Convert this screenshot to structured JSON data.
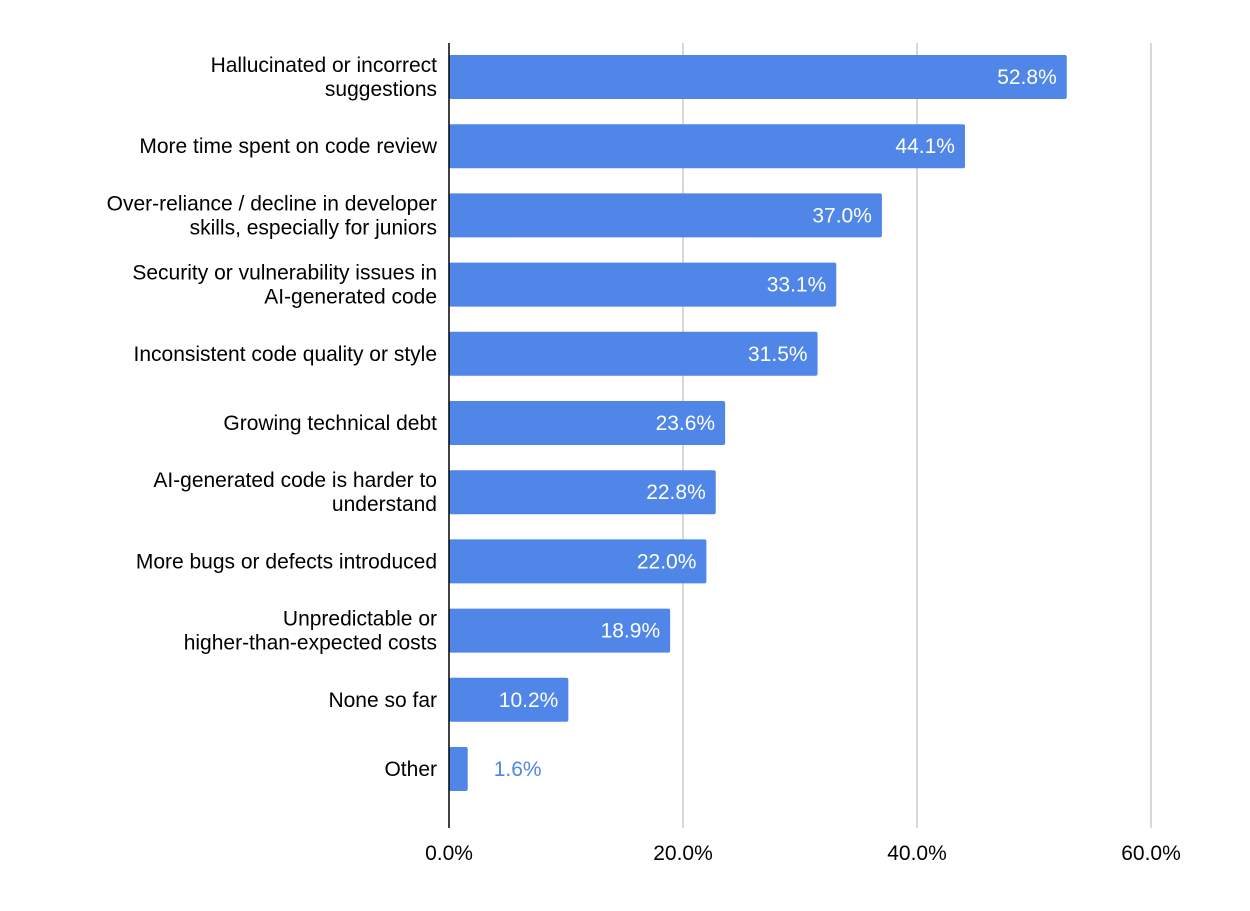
{
  "chart_data": {
    "type": "bar",
    "orientation": "horizontal",
    "categories": [
      [
        "Hallucinated or incorrect",
        "suggestions"
      ],
      [
        "More time spent on code review"
      ],
      [
        "Over-reliance / decline in developer",
        "skills, especially for juniors"
      ],
      [
        "Security or vulnerability issues in",
        "AI-generated code"
      ],
      [
        "Inconsistent code quality or style"
      ],
      [
        "Growing technical debt"
      ],
      [
        "AI-generated code is harder to",
        "understand"
      ],
      [
        "More bugs or defects introduced"
      ],
      [
        "Unpredictable or",
        "higher-than-expected costs"
      ],
      [
        "None so far"
      ],
      [
        "Other"
      ]
    ],
    "values": [
      52.8,
      44.1,
      37.0,
      33.1,
      31.5,
      23.6,
      22.8,
      22.0,
      18.9,
      10.2,
      1.6
    ],
    "data_labels": [
      "52.8%",
      "44.1%",
      "37.0%",
      "33.1%",
      "31.5%",
      "23.6%",
      "22.8%",
      "22.0%",
      "18.9%",
      "10.2%",
      "1.6%"
    ],
    "xlim": [
      0,
      60
    ],
    "x_ticks": [
      0,
      20,
      40,
      60
    ],
    "x_tick_labels": [
      "0.0%",
      "20.0%",
      "40.0%",
      "60.0%"
    ],
    "title": "",
    "xlabel": "",
    "ylabel": "",
    "grid": true,
    "legend": "none",
    "colors": {
      "bar": "#4f86e8",
      "label_inside": "#ffffff",
      "label_outside": "#4f86e8",
      "grid": "#cccccc",
      "axis": "#000000"
    }
  }
}
